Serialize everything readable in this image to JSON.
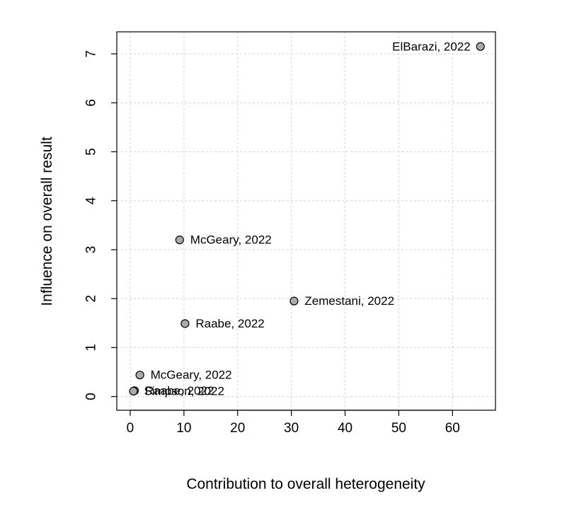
{
  "chart_data": {
    "type": "scatter",
    "title": "",
    "xlabel": "Contribution to overall heterogeneity",
    "ylabel": "Influence on overall result",
    "xlim": [
      -2.5,
      68
    ],
    "ylim": [
      -0.28,
      7.45
    ],
    "x_ticks": [
      0,
      10,
      20,
      30,
      40,
      50,
      60
    ],
    "y_ticks": [
      0,
      1,
      2,
      3,
      4,
      5,
      6,
      7
    ],
    "grid": true,
    "legend": "none",
    "colors": {
      "point_fill": "#aaaaaa",
      "point_stroke": "#000000",
      "grid": "#d3d3d3",
      "axis": "#000000"
    },
    "points": [
      {
        "label": "ElBarazi, 2022",
        "x": 65.2,
        "y": 7.15,
        "label_side": "left"
      },
      {
        "label": "McGeary, 2022",
        "x": 9.2,
        "y": 3.2,
        "label_side": "right"
      },
      {
        "label": "Zemestani, 2022",
        "x": 30.5,
        "y": 1.95,
        "label_side": "right"
      },
      {
        "label": "Raabe, 2022",
        "x": 10.2,
        "y": 1.49,
        "label_side": "right"
      },
      {
        "label": "McGeary, 2022",
        "x": 1.8,
        "y": 0.44,
        "label_side": "right"
      },
      {
        "label": "Raabe, 2022",
        "x": 0.8,
        "y": 0.12,
        "label_side": "right"
      },
      {
        "label": "Simpson, 2022",
        "x": 0.6,
        "y": 0.11,
        "label_side": "right"
      }
    ]
  }
}
